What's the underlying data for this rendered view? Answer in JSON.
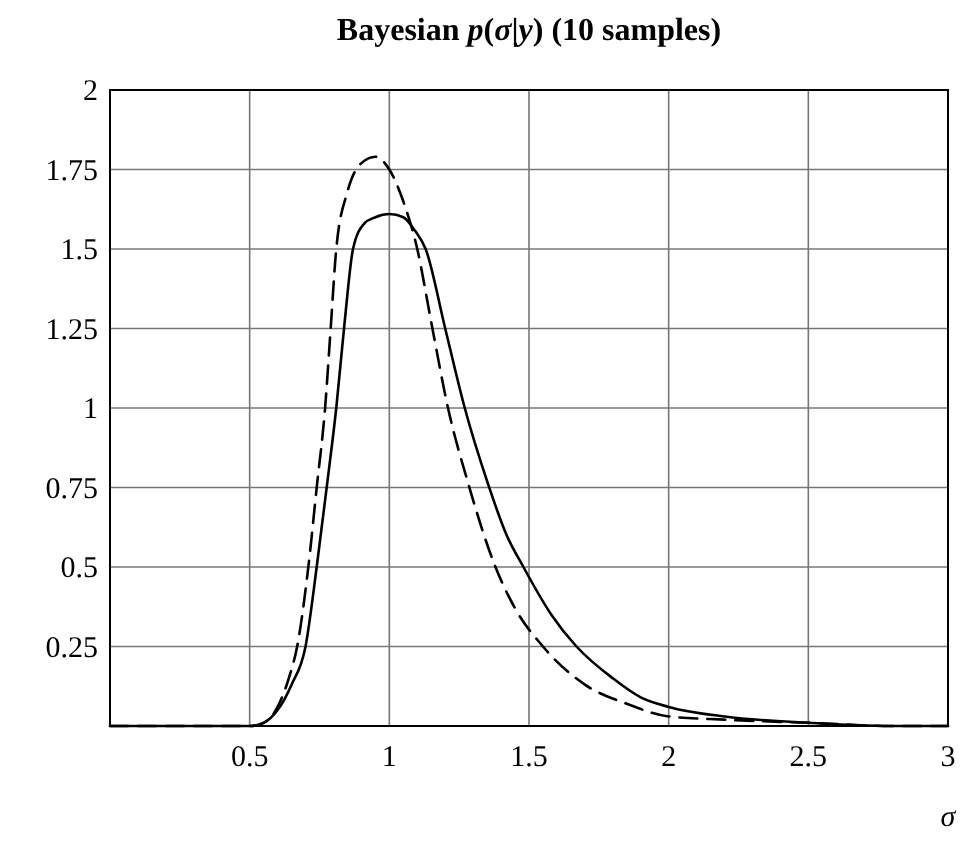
{
  "chart_data": {
    "type": "line",
    "title": "Bayesian p(σ|y) (10 samples)",
    "xlabel": "σ",
    "xlim": [
      0,
      3
    ],
    "ylim": [
      0,
      2
    ],
    "xticks": [
      0.5,
      1,
      1.5,
      2,
      2.5,
      3
    ],
    "yticks": [
      0.25,
      0.5,
      0.75,
      1,
      1.25,
      1.5,
      1.75,
      2
    ],
    "grid": true,
    "marker": "none",
    "series": [
      {
        "color": "#000000",
        "line_style": "solid",
        "x": [
          0,
          0.5,
          0.55,
          0.6,
          0.65,
          0.7,
          0.74,
          0.78,
          0.81,
          0.84,
          0.87,
          0.91,
          0.95,
          1,
          1.05,
          1.09,
          1.13,
          1.2,
          1.27,
          1.35,
          1.42,
          1.48,
          1.58,
          1.67,
          1.8,
          1.9,
          2,
          2.2,
          2.5,
          2.8,
          3
        ],
        "values": [
          0,
          0,
          0.01,
          0.05,
          0.13,
          0.25,
          0.5,
          0.78,
          1,
          1.27,
          1.5,
          1.58,
          1.6,
          1.61,
          1.6,
          1.56,
          1.5,
          1.25,
          1,
          0.77,
          0.6,
          0.5,
          0.35,
          0.25,
          0.15,
          0.09,
          0.06,
          0.03,
          0.01,
          0,
          0
        ]
      },
      {
        "color": "#000000",
        "line_style": "dashed",
        "x": [
          0,
          0.5,
          0.55,
          0.6,
          0.64,
          0.67,
          0.71,
          0.74,
          0.77,
          0.79,
          0.81,
          0.85,
          0.9,
          0.95,
          1,
          1.05,
          1.1,
          1.15,
          1.21,
          1.28,
          1.38,
          1.45,
          1.55,
          1.7,
          1.85,
          2,
          2.2,
          2.5,
          2.8,
          3
        ],
        "values": [
          0,
          0,
          0.01,
          0.06,
          0.15,
          0.25,
          0.5,
          0.75,
          1,
          1.25,
          1.5,
          1.68,
          1.77,
          1.79,
          1.75,
          1.65,
          1.5,
          1.27,
          1,
          0.77,
          0.5,
          0.37,
          0.25,
          0.13,
          0.07,
          0.03,
          0.02,
          0.01,
          0,
          0
        ]
      }
    ]
  }
}
